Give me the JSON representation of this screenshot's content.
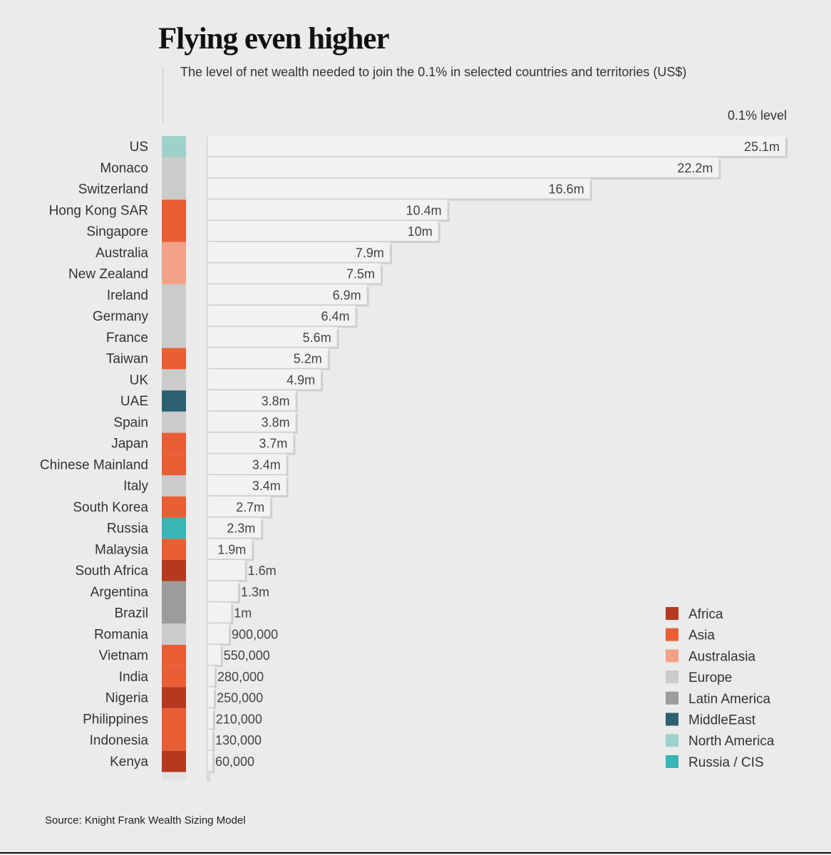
{
  "title": "Flying even higher",
  "subtitle": "The level of net wealth needed to join the 0.1% in selected countries and territories (US$)",
  "column_label": "0.1% level",
  "source": "Source: Knight Frank Wealth Sizing Model",
  "colors": {
    "Africa": "#b5391f",
    "Asia": "#e95e35",
    "Australasia": "#f4a287",
    "Europe": "#cbcbcb",
    "Latin America": "#9c9c9c",
    "MiddleEast": "#2b6170",
    "North America": "#9fd1ca",
    "Russia / CIS": "#3ab5b5"
  },
  "chart_data": {
    "type": "bar",
    "orientation": "horizontal",
    "title": "Flying even higher",
    "subtitle": "The level of net wealth needed to join the 0.1% in selected countries and territories (US$)",
    "categories": [
      "US",
      "Monaco",
      "Switzerland",
      "Hong Kong SAR",
      "Singapore",
      "Australia",
      "New Zealand",
      "Ireland",
      "Germany",
      "France",
      "Taiwan",
      "UK",
      "UAE",
      "Spain",
      "Japan",
      "Chinese Mainland",
      "Italy",
      "South Korea",
      "Russia",
      "Malaysia",
      "South Africa",
      "Argentina",
      "Brazil",
      "Romania",
      "Vietnam",
      "India",
      "Nigeria",
      "Philippines",
      "Indonesia",
      "Kenya"
    ],
    "values": [
      25100000,
      22200000,
      16600000,
      10400000,
      10000000,
      7900000,
      7500000,
      6900000,
      6400000,
      5600000,
      5200000,
      4900000,
      3800000,
      3800000,
      3700000,
      3400000,
      3400000,
      2700000,
      2300000,
      1900000,
      1600000,
      1300000,
      1000000,
      900000,
      550000,
      280000,
      250000,
      210000,
      130000,
      60000
    ],
    "value_labels": [
      "25.1m",
      "22.2m",
      "16.6m",
      "10.4m",
      "10m",
      "7.9m",
      "7.5m",
      "6.9m",
      "6.4m",
      "5.6m",
      "5.2m",
      "4.9m",
      "3.8m",
      "3.8m",
      "3.7m",
      "3.4m",
      "3.4m",
      "2.7m",
      "2.3m",
      "1.9m",
      "1.6m",
      "1.3m",
      "1m",
      "900,000",
      "550,000",
      "280,000",
      "250,000",
      "210,000",
      "130,000",
      "60,000"
    ],
    "regions": [
      "North America",
      "Europe",
      "Europe",
      "Asia",
      "Asia",
      "Australasia",
      "Australasia",
      "Europe",
      "Europe",
      "Europe",
      "Asia",
      "Europe",
      "MiddleEast",
      "Europe",
      "Asia",
      "Asia",
      "Europe",
      "Asia",
      "Russia / CIS",
      "Asia",
      "Africa",
      "Latin America",
      "Latin America",
      "Europe",
      "Asia",
      "Asia",
      "Africa",
      "Asia",
      "Asia",
      "Africa"
    ],
    "legend": [
      "Africa",
      "Asia",
      "Australasia",
      "Europe",
      "Latin America",
      "MiddleEast",
      "North America",
      "Russia / CIS"
    ],
    "legend_position": "bottom-right",
    "xlim": [
      0,
      25100000
    ],
    "grid": false
  }
}
